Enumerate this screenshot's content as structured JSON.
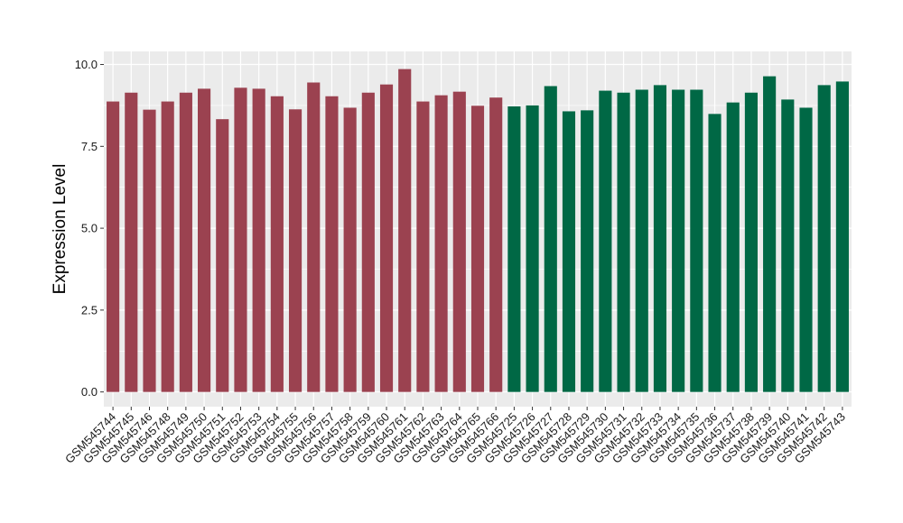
{
  "chart_data": {
    "type": "bar",
    "ylabel": "Expression Level",
    "xlabel": "",
    "ylim": [
      -0.45,
      10.4
    ],
    "yticks": [
      0.0,
      2.5,
      5.0,
      7.5,
      10.0
    ],
    "ytick_labels": [
      "0.0",
      "2.5",
      "5.0",
      "7.5",
      "10.0"
    ],
    "grid": true,
    "legend": "none",
    "categories": [
      "GSM545744",
      "GSM545745",
      "GSM545746",
      "GSM545748",
      "GSM545749",
      "GSM545750",
      "GSM545751",
      "GSM545752",
      "GSM545753",
      "GSM545754",
      "GSM545755",
      "GSM545756",
      "GSM545757",
      "GSM545758",
      "GSM545759",
      "GSM545760",
      "GSM545761",
      "GSM545762",
      "GSM545763",
      "GSM545764",
      "GSM545765",
      "GSM545766",
      "GSM545725",
      "GSM545726",
      "GSM545727",
      "GSM545728",
      "GSM545729",
      "GSM545730",
      "GSM545731",
      "GSM545732",
      "GSM545733",
      "GSM545734",
      "GSM545735",
      "GSM545736",
      "GSM545737",
      "GSM545738",
      "GSM545739",
      "GSM545740",
      "GSM545741",
      "GSM545742",
      "GSM545743"
    ],
    "values": [
      8.87,
      9.14,
      8.62,
      8.87,
      9.14,
      9.26,
      8.33,
      9.29,
      9.26,
      9.03,
      8.63,
      9.45,
      9.03,
      8.68,
      9.14,
      9.39,
      9.86,
      8.87,
      9.06,
      9.17,
      8.74,
      8.99,
      8.72,
      8.75,
      9.34,
      8.57,
      8.6,
      9.2,
      9.14,
      9.23,
      9.37,
      9.23,
      9.23,
      8.49,
      8.84,
      9.14,
      9.64,
      8.93,
      8.68,
      9.37,
      9.48
    ],
    "bar_colors": [
      "#9b4250",
      "#9b4250",
      "#9b4250",
      "#9b4250",
      "#9b4250",
      "#9b4250",
      "#9b4250",
      "#9b4250",
      "#9b4250",
      "#9b4250",
      "#9b4250",
      "#9b4250",
      "#9b4250",
      "#9b4250",
      "#9b4250",
      "#9b4250",
      "#9b4250",
      "#9b4250",
      "#9b4250",
      "#9b4250",
      "#9b4250",
      "#9b4250",
      "#006845",
      "#006845",
      "#006845",
      "#006845",
      "#006845",
      "#006845",
      "#006845",
      "#006845",
      "#006845",
      "#006845",
      "#006845",
      "#006845",
      "#006845",
      "#006845",
      "#006845",
      "#006845",
      "#006845",
      "#006845",
      "#006845"
    ],
    "panel_background": "#ebebeb",
    "grid_color": "#ffffff"
  }
}
